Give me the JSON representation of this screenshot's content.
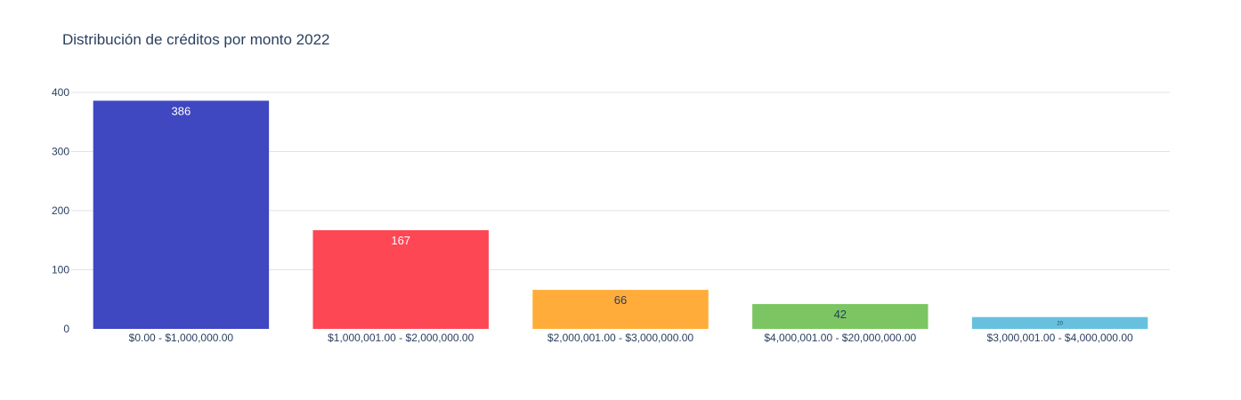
{
  "chart_data": {
    "type": "bar",
    "title": "Distribución de créditos por monto 2022",
    "xlabel": "",
    "ylabel": "",
    "categories": [
      "$0.00 - $1,000,000.00",
      "$1,000,001.00 - $2,000,000.00",
      "$2,000,001.00 - $3,000,000.00",
      "$4,000,001.00 - $20,000,000.00",
      "$3,000,001.00 - $4,000,000.00"
    ],
    "values": [
      386,
      167,
      66,
      42,
      20
    ],
    "data_labels": [
      "386",
      "167",
      "66",
      "42",
      "20"
    ],
    "colors": [
      "#3f47c1",
      "#fe4754",
      "#ffac3a",
      "#7bc662",
      "#67c1de"
    ],
    "label_colors": [
      "#ffffff",
      "#ffffff",
      "#2a3f5f",
      "#2a3f5f",
      "#2a3f5f"
    ],
    "ylim": [
      0,
      400
    ],
    "yticks": [
      0,
      100,
      200,
      300,
      400
    ],
    "grid": true,
    "legend": "none"
  }
}
